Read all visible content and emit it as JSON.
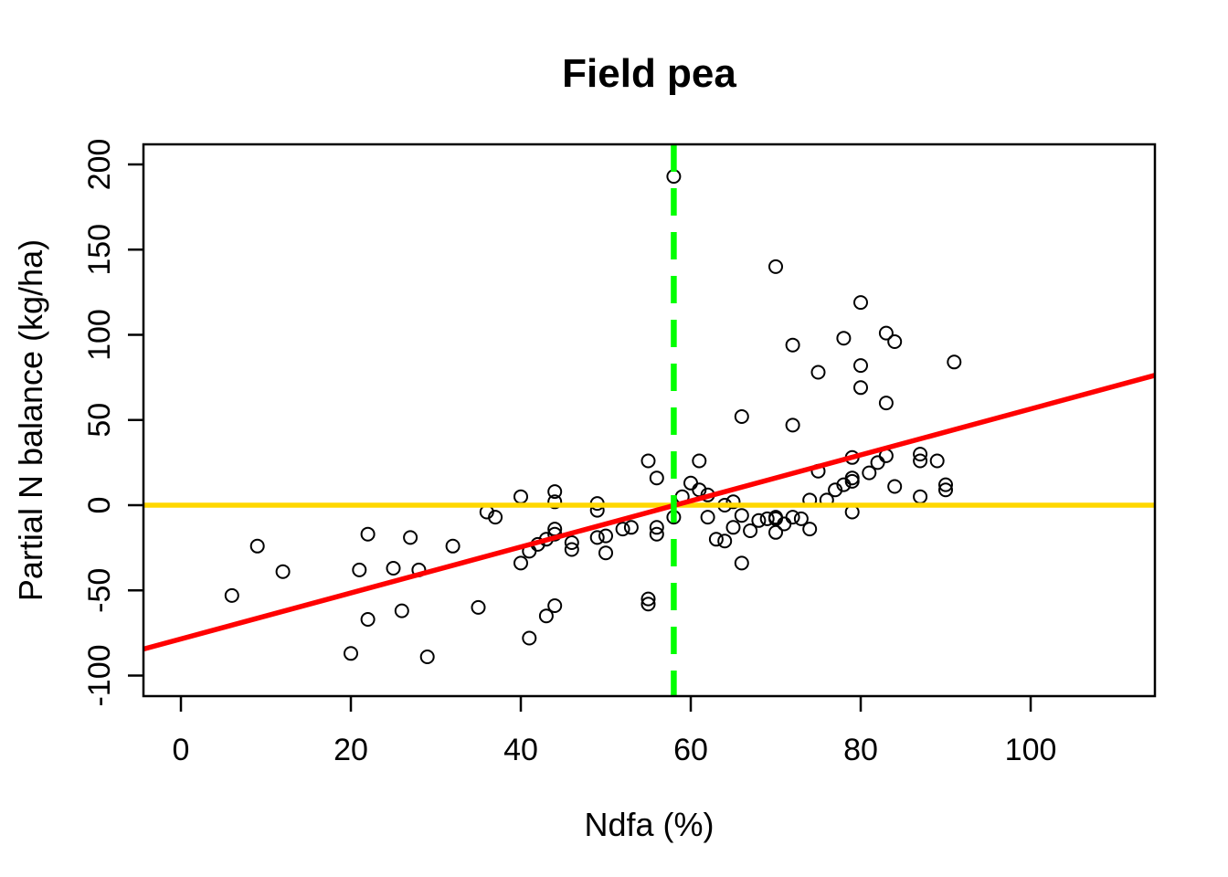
{
  "page": {
    "background": "#FFFFFF"
  },
  "chart_data": {
    "type": "scatter",
    "title": "Field pea",
    "xlabel": "Ndfa (%)",
    "ylabel": "Partial N balance (kg/ha)",
    "x_ticks": [
      0,
      20,
      40,
      60,
      80,
      100
    ],
    "y_ticks": [
      -100,
      -50,
      0,
      50,
      100,
      150,
      200
    ],
    "xlim": [
      -4.41,
      114.62
    ],
    "ylim": [
      -112.06,
      211.8
    ],
    "grid": false,
    "legend": "none",
    "point_style": "open-circle",
    "point_color": "#000000",
    "points": [
      [
        6,
        -53
      ],
      [
        9,
        -24
      ],
      [
        12,
        -39
      ],
      [
        20,
        -87
      ],
      [
        21,
        -38
      ],
      [
        22,
        -17
      ],
      [
        22,
        -67
      ],
      [
        25,
        -37
      ],
      [
        26,
        -62
      ],
      [
        27,
        -19
      ],
      [
        28,
        -38
      ],
      [
        29,
        -89
      ],
      [
        32,
        -24
      ],
      [
        35,
        -60
      ],
      [
        36,
        -4
      ],
      [
        37,
        -7
      ],
      [
        40,
        5
      ],
      [
        40,
        -34
      ],
      [
        41,
        -27
      ],
      [
        41,
        -78
      ],
      [
        42,
        -23
      ],
      [
        43,
        -20
      ],
      [
        43,
        -65
      ],
      [
        44,
        8
      ],
      [
        44,
        2
      ],
      [
        44,
        -14
      ],
      [
        44,
        -17
      ],
      [
        44,
        -59
      ],
      [
        46,
        -22
      ],
      [
        46,
        -26
      ],
      [
        49,
        1
      ],
      [
        49,
        -3
      ],
      [
        49,
        -19
      ],
      [
        50,
        -18
      ],
      [
        50,
        -28
      ],
      [
        52,
        -14
      ],
      [
        53,
        -13
      ],
      [
        55,
        26
      ],
      [
        55,
        -55
      ],
      [
        55,
        -58
      ],
      [
        56,
        16
      ],
      [
        56,
        -13
      ],
      [
        56,
        -17
      ],
      [
        58,
        193
      ],
      [
        58,
        -7
      ],
      [
        59,
        5
      ],
      [
        60,
        13
      ],
      [
        61,
        26
      ],
      [
        61,
        9
      ],
      [
        62,
        6
      ],
      [
        62,
        -7
      ],
      [
        63,
        -20
      ],
      [
        64,
        -21
      ],
      [
        64,
        0
      ],
      [
        65,
        2
      ],
      [
        65,
        -13
      ],
      [
        66,
        -6
      ],
      [
        66,
        -34
      ],
      [
        66,
        52
      ],
      [
        67,
        -15
      ],
      [
        68,
        -9
      ],
      [
        69,
        -8
      ],
      [
        70,
        -7
      ],
      [
        70,
        -8
      ],
      [
        70,
        -16
      ],
      [
        70,
        140
      ],
      [
        71,
        -11
      ],
      [
        72,
        -7
      ],
      [
        72,
        47
      ],
      [
        72,
        94
      ],
      [
        73,
        -8
      ],
      [
        74,
        3
      ],
      [
        74,
        -14
      ],
      [
        75,
        20
      ],
      [
        75,
        78
      ],
      [
        76,
        3
      ],
      [
        77,
        9
      ],
      [
        78,
        12
      ],
      [
        78,
        98
      ],
      [
        79,
        14
      ],
      [
        79,
        16
      ],
      [
        79,
        28
      ],
      [
        79,
        -4
      ],
      [
        80,
        119
      ],
      [
        80,
        82
      ],
      [
        80,
        69
      ],
      [
        81,
        19
      ],
      [
        82,
        25
      ],
      [
        83,
        29
      ],
      [
        83,
        101
      ],
      [
        83,
        60
      ],
      [
        84,
        96
      ],
      [
        84,
        11
      ],
      [
        87,
        30
      ],
      [
        87,
        26
      ],
      [
        87,
        5
      ],
      [
        89,
        26
      ],
      [
        90,
        12
      ],
      [
        90,
        9
      ],
      [
        91,
        84
      ]
    ],
    "lines": [
      {
        "name": "zero-balance-line",
        "type": "horizontal",
        "y": 0,
        "color": "#FFD700",
        "dash": "solid",
        "width": 5.5
      },
      {
        "name": "regression-line",
        "type": "ab",
        "intercept": -78.5,
        "slope": 1.35,
        "color": "#FF0000",
        "dash": "solid",
        "width": 5.5
      },
      {
        "name": "ndfa-threshold-line",
        "type": "vertical",
        "x": 58,
        "color": "#00FF00",
        "dash": "dashed",
        "width": 6.5
      }
    ]
  }
}
